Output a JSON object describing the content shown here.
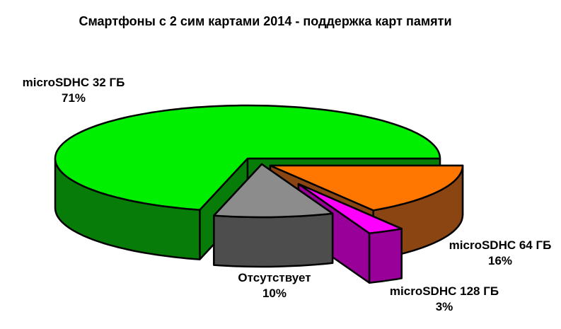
{
  "page": {
    "background": "#ffffff"
  },
  "chart_data": {
    "type": "pie",
    "variant": "3d-exploded",
    "title": "Смартфоны с 2 сим картами 2014 - поддержка карт памяти",
    "legend_position": "none",
    "label_style": "outside, bold, name above percent",
    "outline_color": "#000000",
    "slices": [
      {
        "key": "microsdhc-64gb",
        "label": "microSDHC 64 ГБ",
        "value": 16,
        "pct_label": "16%",
        "color_top": "#ff7700",
        "color_side": "#8b4513"
      },
      {
        "key": "microsdhc-128gb",
        "label": "microSDHC 128 ГБ",
        "value": 3,
        "pct_label": "3%",
        "color_top": "#ff00ff",
        "color_side": "#990099"
      },
      {
        "key": "none",
        "label": "Отсутствует",
        "value": 10,
        "pct_label": "10%",
        "color_top": "#8c8c8c",
        "color_side": "#4d4d4d"
      },
      {
        "key": "microsdhc-32gb",
        "label": "microSDHC 32 ГБ",
        "value": 71,
        "pct_label": "71%",
        "color_top": "#00ee00",
        "color_side": "#087c08"
      }
    ]
  }
}
